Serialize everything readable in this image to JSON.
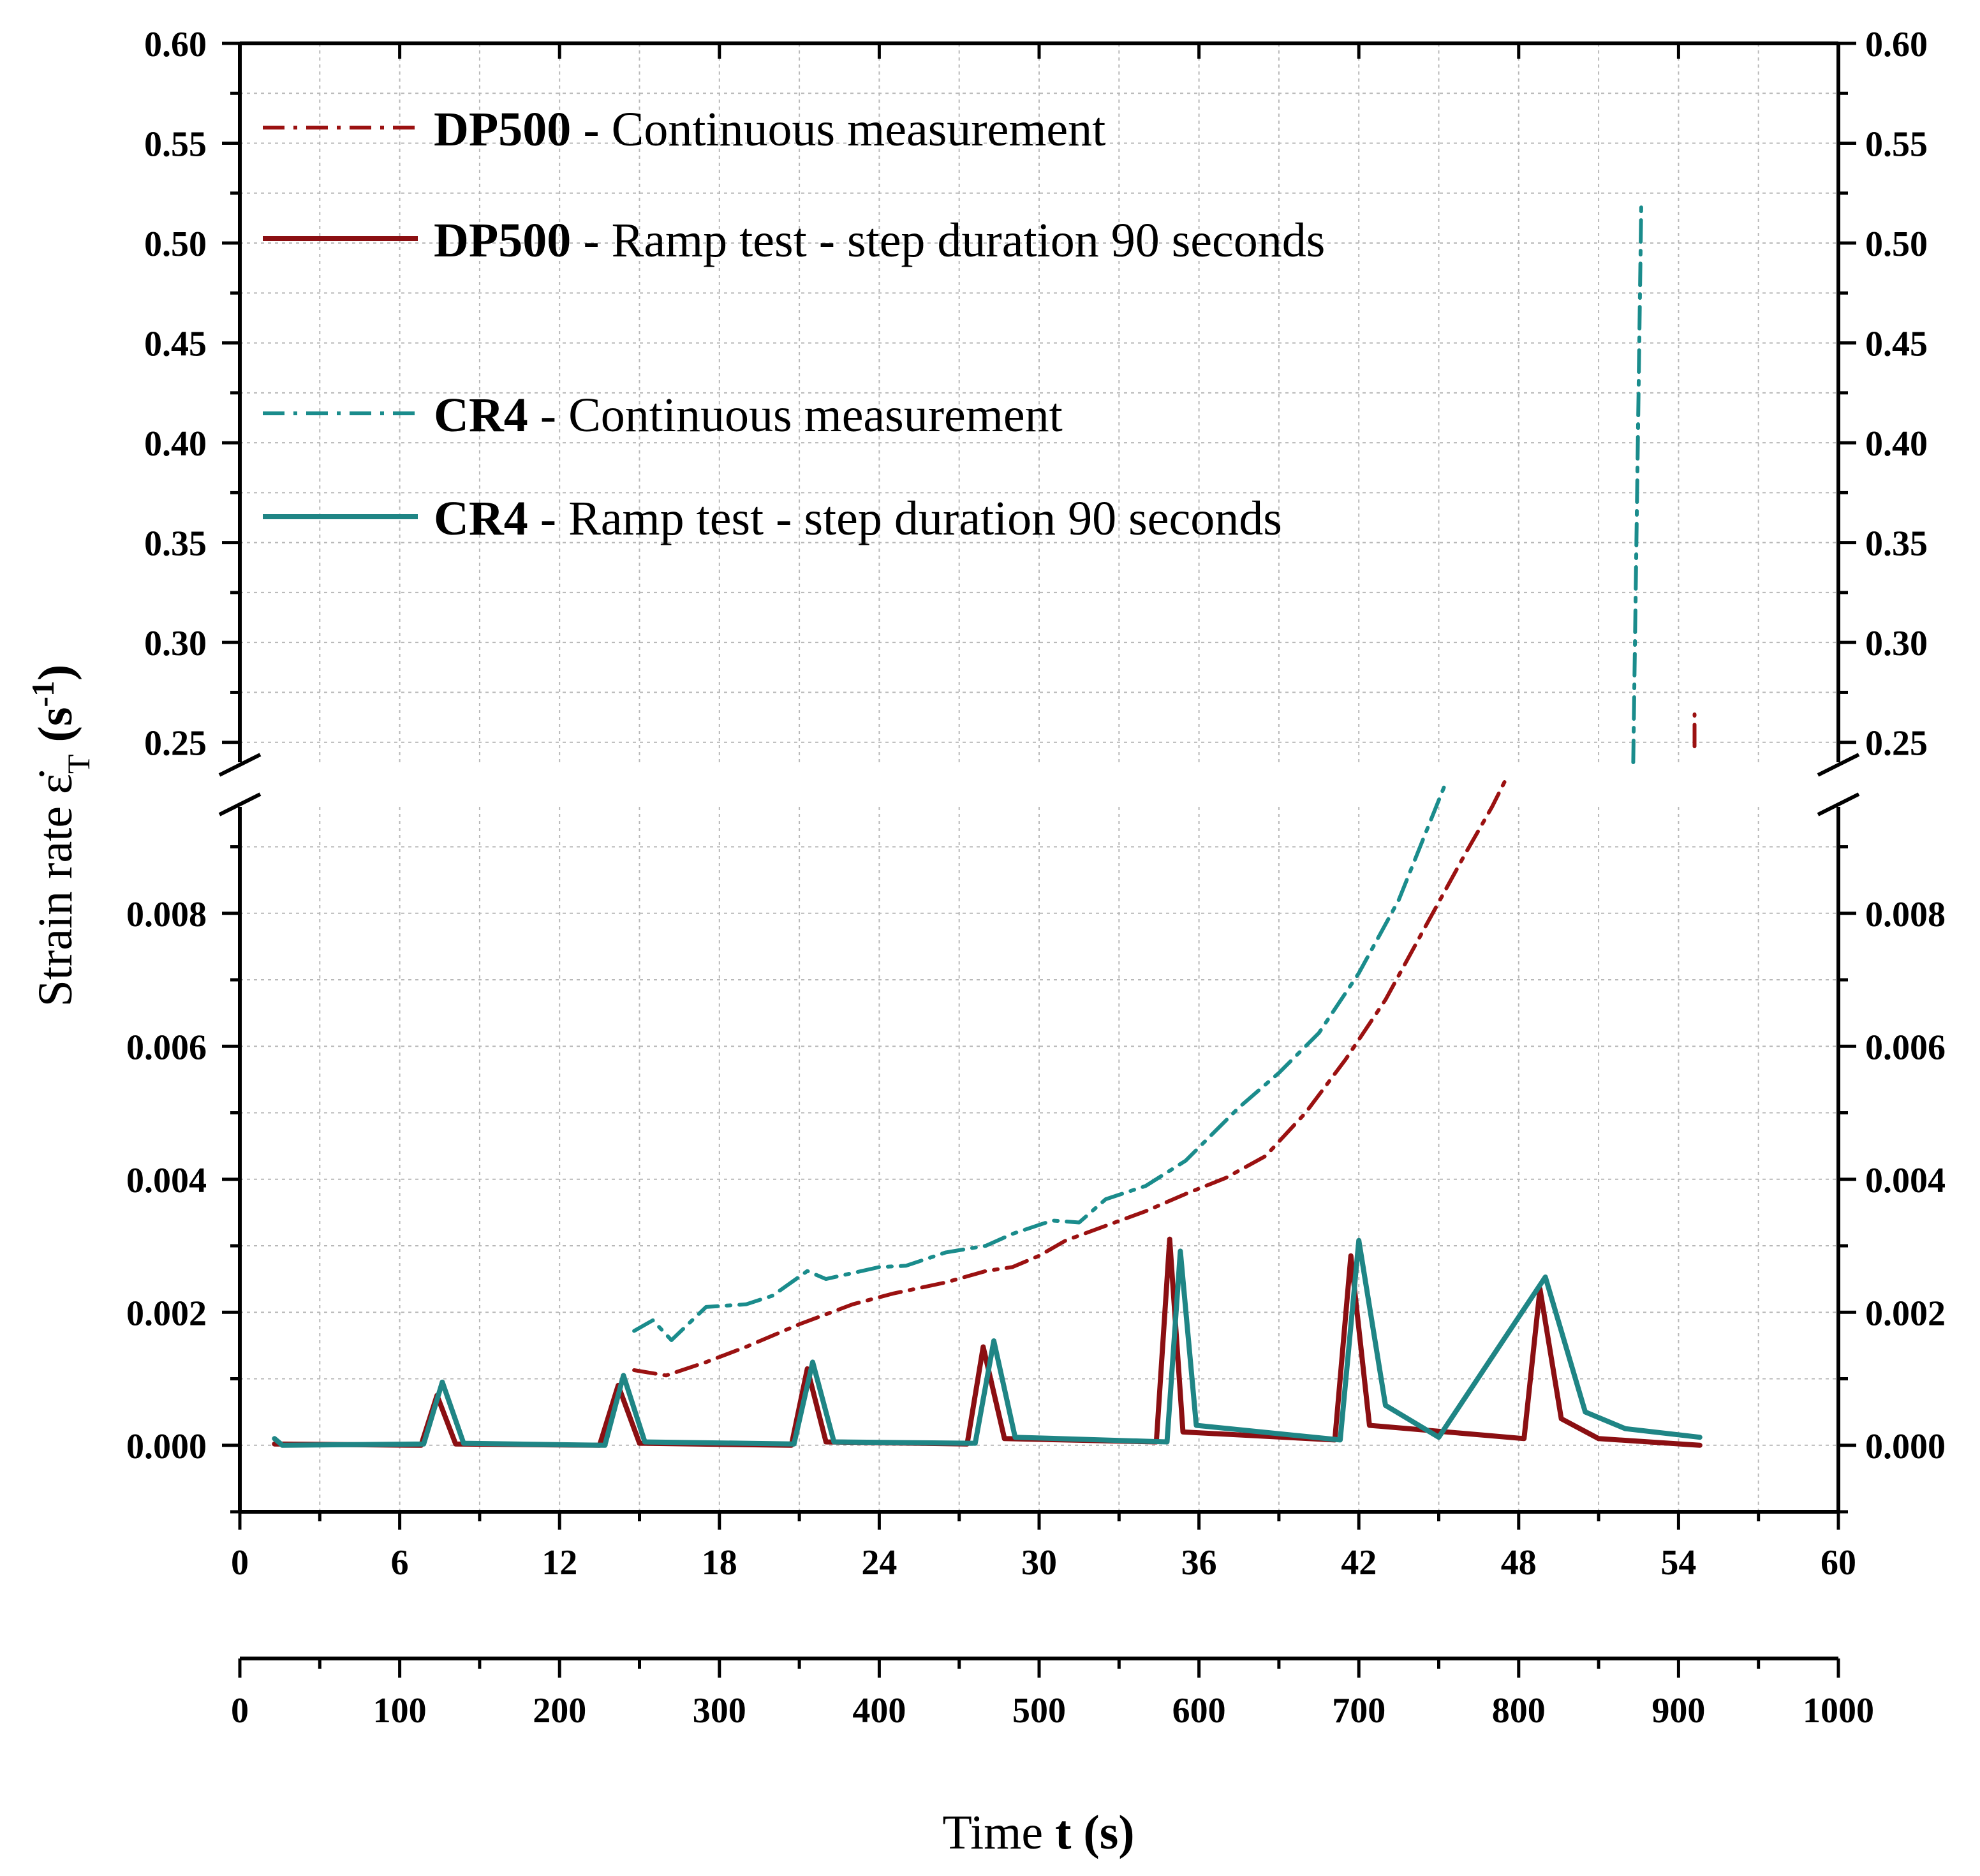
{
  "chart_data": {
    "type": "line",
    "title": "",
    "ylabel": "Strain rate ε̇",
    "ylabel_sub": "T",
    "ylabel_unit": "(s",
    "ylabel_unit_sup": "-1",
    "ylabel_unit_close": ")",
    "xlabel_prefix": "Time ",
    "xlabel_var": "t",
    "xlabel_unit": " (s)",
    "x_top_axis": {
      "min": 0,
      "max": 60,
      "step": 6,
      "tick_labels": [
        "0",
        "6",
        "12",
        "18",
        "24",
        "30",
        "36",
        "42",
        "48",
        "54",
        "60"
      ]
    },
    "x_bottom_axis": {
      "min": 0,
      "max": 1000,
      "step": 100,
      "tick_labels": [
        "0",
        "100",
        "200",
        "300",
        "400",
        "500",
        "600",
        "700",
        "800",
        "900",
        "1000"
      ]
    },
    "y_lower_segment": {
      "min": -0.001,
      "max": 0.0096,
      "tick_labels": [
        "0.000",
        "0.002",
        "0.004",
        "0.006",
        "0.008"
      ],
      "tick_values": [
        0,
        0.002,
        0.004,
        0.006,
        0.008
      ]
    },
    "y_upper_segment": {
      "min": 0.24,
      "max": 0.6,
      "tick_labels": [
        "0.25",
        "0.30",
        "0.35",
        "0.40",
        "0.45",
        "0.50",
        "0.55",
        "0.60"
      ],
      "tick_values": [
        0.25,
        0.3,
        0.35,
        0.4,
        0.45,
        0.5,
        0.55,
        0.6
      ]
    },
    "legend": [
      {
        "bold": "DP500",
        "text": " - Continuous measurement",
        "color": "#9b1111",
        "style": "dashdot"
      },
      {
        "bold": "DP500",
        "text": " - Ramp test - step duration 90 seconds",
        "color": "#8b0f12",
        "style": "solid"
      },
      {
        "bold": "CR4",
        "text": " - Continuous measurement",
        "color": "#1a8c8c",
        "style": "dashdot"
      },
      {
        "bold": "CR4",
        "text": " - Ramp test - step duration 90 seconds",
        "color": "#1f8585",
        "style": "solid"
      }
    ],
    "series": [
      {
        "name": "DP500 - Continuous measurement",
        "color": "#9b1111",
        "style": "dashdot",
        "x": [
          14.8,
          16.0,
          17.5,
          19.0,
          21.0,
          23.0,
          24.5,
          26.5,
          28.0,
          29.0,
          30.0,
          31.0,
          32.5,
          34.0,
          35.5,
          37.0,
          38.5,
          40.0,
          41.5,
          43.0,
          44.5,
          46.0,
          47.0,
          47.5
        ],
        "y": [
          0.00113,
          0.00105,
          0.00125,
          0.00148,
          0.00182,
          0.00212,
          0.00228,
          0.00245,
          0.00262,
          0.00268,
          0.00285,
          0.00308,
          0.0033,
          0.00352,
          0.00378,
          0.00402,
          0.00435,
          0.005,
          0.0058,
          0.0067,
          0.0078,
          0.0089,
          0.0096,
          0.01
        ],
        "upper_x": [
          54.6,
          54.6
        ],
        "upper_y": [
          0.248,
          0.264
        ]
      },
      {
        "name": "DP500 - Ramp test - step duration 90 seconds",
        "color": "#8b0f12",
        "style": "solid",
        "x": [
          1.3,
          6.8,
          7.4,
          8.1,
          13.5,
          14.2,
          15.0,
          20.7,
          21.3,
          22.0,
          27.3,
          27.9,
          28.7,
          34.4,
          34.9,
          35.4,
          41.1,
          41.7,
          42.4,
          48.2,
          48.8,
          49.6,
          51.0,
          54.8
        ],
        "y": [
          2e-05,
          0.0,
          0.00075,
          2e-05,
          0.0,
          0.0009,
          3e-05,
          0.0,
          0.00115,
          5e-05,
          2e-05,
          0.00148,
          0.0001,
          5e-05,
          0.0031,
          0.0002,
          8e-05,
          0.00285,
          0.0003,
          0.0001,
          0.00235,
          0.0004,
          0.0001,
          0.0
        ]
      },
      {
        "name": "CR4 - Continuous measurement",
        "color": "#1a8c8c",
        "style": "dashdot",
        "x": [
          14.8,
          15.5,
          16.2,
          17.5,
          19.0,
          20.0,
          21.3,
          22.0,
          24.0,
          25.0,
          26.5,
          28.0,
          29.0,
          30.5,
          31.5,
          32.5,
          34.0,
          35.5,
          37.5,
          39.0,
          40.5,
          42.0,
          43.5,
          44.5,
          45.2
        ],
        "y": [
          0.00172,
          0.00188,
          0.00158,
          0.00208,
          0.00212,
          0.00225,
          0.00262,
          0.0025,
          0.00268,
          0.0027,
          0.0029,
          0.003,
          0.00318,
          0.00338,
          0.00335,
          0.0037,
          0.0039,
          0.00428,
          0.00508,
          0.0056,
          0.0062,
          0.0071,
          0.0082,
          0.0092,
          0.0099
        ],
        "upper_x": [
          52.3,
          52.45,
          52.6
        ],
        "upper_y": [
          0.24,
          0.38,
          0.518
        ]
      },
      {
        "name": "CR4 - Ramp test - step duration 90 seconds",
        "color": "#1f8585",
        "style": "solid",
        "x": [
          1.3,
          1.6,
          6.9,
          7.6,
          8.4,
          13.7,
          14.4,
          15.2,
          20.8,
          21.5,
          22.3,
          27.6,
          28.3,
          29.1,
          34.8,
          35.3,
          35.9,
          41.3,
          42.0,
          43.0,
          45.0,
          49.0,
          50.5,
          52.0,
          54.8
        ],
        "y": [
          0.0001,
          0.0,
          2e-05,
          0.00095,
          3e-05,
          0.0,
          0.00105,
          5e-05,
          2e-05,
          0.00125,
          5e-05,
          3e-05,
          0.00157,
          0.00012,
          5e-05,
          0.00292,
          0.0003,
          8e-05,
          0.00308,
          0.0006,
          0.00012,
          0.00253,
          0.0005,
          0.00025,
          0.00012
        ]
      }
    ]
  }
}
